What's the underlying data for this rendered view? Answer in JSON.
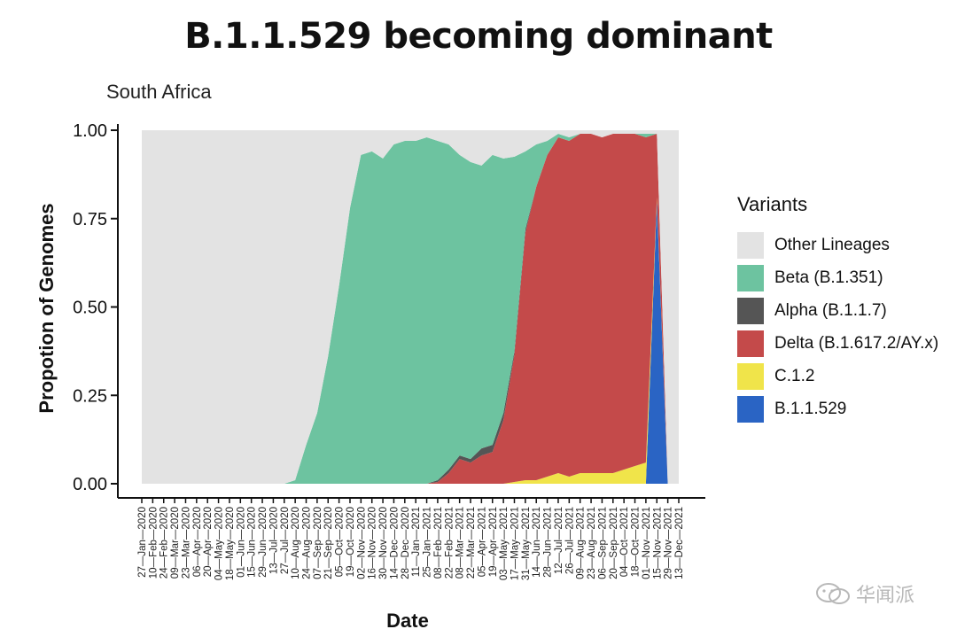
{
  "title": "B.1.1.529 becoming dominant",
  "chart_data": {
    "type": "area",
    "subtitle": "South Africa",
    "xlabel": "Date",
    "ylabel": "Propotion of Genomes",
    "ylim": [
      0,
      1
    ],
    "yticks": [
      "0.00",
      "0.25",
      "0.50",
      "0.75",
      "1.00"
    ],
    "x_ticks": [
      "27—Jan—2020",
      "10—Feb—2020",
      "24—Feb—2020",
      "09—Mar—2020",
      "23—Mar—2020",
      "06—Apr—2020",
      "20—Apr—2020",
      "04—May—2020",
      "18—May—2020",
      "01—Jun—2020",
      "15—Jun—2020",
      "29—Jun—2020",
      "13—Jul—2020",
      "27—Jul—2020",
      "10—Aug—2020",
      "24—Aug—2020",
      "07—Sep—2020",
      "21—Sep—2020",
      "05—Oct—2020",
      "19—Oct—2020",
      "02—Nov—2020",
      "16—Nov—2020",
      "30—Nov—2020",
      "14—Dec—2020",
      "28—Dec—2020",
      "11—Jan—2021",
      "25—Jan—2021",
      "08—Feb—2021",
      "22—Feb—2021",
      "08—Mar—2021",
      "22—Mar—2021",
      "05—Apr—2021",
      "19—Apr—2021",
      "03—May—2021",
      "17—May—2021",
      "31—May—2021",
      "14—Jun—2021",
      "28—Jun—2021",
      "12—Jul—2021",
      "26—Jul—2021",
      "09—Aug—2021",
      "23—Aug—2021",
      "06—Sep—2021",
      "20—Sep—2021",
      "04—Oct—2021",
      "18—Oct—2021",
      "01—Nov—2021",
      "15—Nov—2021",
      "29—Nov—2021",
      "13—Dec—2021"
    ],
    "legend_title": "Variants",
    "legend_position": "right",
    "series": [
      {
        "name": "Other Lineages",
        "color": "#e3e3e3",
        "values": [
          1,
          1,
          1,
          1,
          1,
          1,
          1,
          1,
          1,
          1,
          1,
          1,
          1,
          1,
          1,
          1,
          1,
          1,
          1,
          1,
          1,
          1,
          1,
          1,
          1,
          1,
          1,
          1,
          1,
          1,
          1,
          1,
          1,
          1,
          1,
          1,
          1,
          1,
          1,
          1,
          1,
          1,
          1,
          1,
          1,
          1,
          1,
          0.99,
          1,
          1
        ]
      },
      {
        "name": "Beta (B.1.351)",
        "color": "#6dc3a0",
        "values": [
          0,
          0,
          0,
          0,
          0,
          0,
          0,
          0,
          0,
          0,
          0,
          0,
          0,
          0,
          0.01,
          0.11,
          0.2,
          0.36,
          0.56,
          0.78,
          0.93,
          0.94,
          0.92,
          0.96,
          0.97,
          0.97,
          0.98,
          0.96,
          0.92,
          0.85,
          0.84,
          0.8,
          0.82,
          0.72,
          0.55,
          0.22,
          0.12,
          0.04,
          0.01,
          0.01,
          0.0,
          0.0,
          0.0,
          0.0,
          0.0,
          0.0,
          0.01,
          0.0,
          0.0,
          0.0
        ]
      },
      {
        "name": "Alpha (B.1.1.7)",
        "color": "#555555",
        "values": [
          0,
          0,
          0,
          0,
          0,
          0,
          0,
          0,
          0,
          0,
          0,
          0,
          0,
          0,
          0,
          0,
          0,
          0,
          0,
          0,
          0,
          0,
          0,
          0,
          0,
          0,
          0,
          0.005,
          0.01,
          0.01,
          0.01,
          0.02,
          0.02,
          0.02,
          0.01,
          0.01,
          0,
          0,
          0,
          0,
          0,
          0,
          0,
          0,
          0,
          0,
          0,
          0,
          0,
          0
        ]
      },
      {
        "name": "Delta (B.1.617.2/AY.x)",
        "color": "#c44a4a",
        "values": [
          0,
          0,
          0,
          0,
          0,
          0,
          0,
          0,
          0,
          0,
          0,
          0,
          0,
          0,
          0,
          0,
          0,
          0,
          0,
          0,
          0,
          0,
          0,
          0,
          0,
          0,
          0,
          0.005,
          0.03,
          0.07,
          0.06,
          0.08,
          0.09,
          0.18,
          0.36,
          0.7,
          0.83,
          0.91,
          0.95,
          0.95,
          0.96,
          0.96,
          0.95,
          0.96,
          0.95,
          0.94,
          0.92,
          0.18,
          0,
          0
        ]
      },
      {
        "name": "C.1.2",
        "color": "#f0e44a",
        "values": [
          0,
          0,
          0,
          0,
          0,
          0,
          0,
          0,
          0,
          0,
          0,
          0,
          0,
          0,
          0,
          0,
          0,
          0,
          0,
          0,
          0,
          0,
          0,
          0,
          0,
          0,
          0,
          0,
          0,
          0,
          0,
          0,
          0,
          0,
          0.005,
          0.01,
          0.01,
          0.02,
          0.03,
          0.02,
          0.03,
          0.03,
          0.03,
          0.03,
          0.04,
          0.05,
          0.06,
          0.01,
          0,
          0
        ]
      },
      {
        "name": "B.1.1.529",
        "color": "#2a64c4",
        "values": [
          0,
          0,
          0,
          0,
          0,
          0,
          0,
          0,
          0,
          0,
          0,
          0,
          0,
          0,
          0,
          0,
          0,
          0,
          0,
          0,
          0,
          0,
          0,
          0,
          0,
          0,
          0,
          0,
          0,
          0,
          0,
          0,
          0,
          0,
          0,
          0,
          0,
          0,
          0,
          0,
          0,
          0,
          0,
          0,
          0,
          0,
          0,
          0.8,
          0,
          0
        ]
      }
    ]
  },
  "watermark": {
    "text": "华闻派"
  }
}
